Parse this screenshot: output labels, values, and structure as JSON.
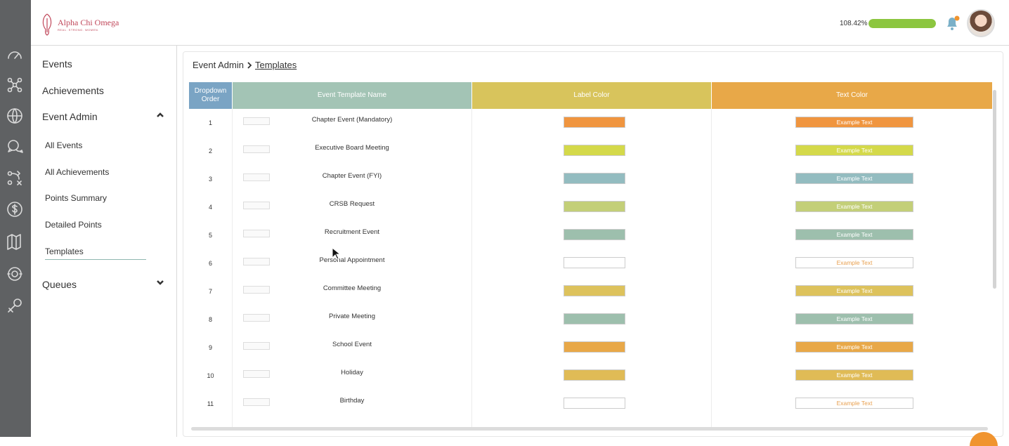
{
  "brand": {
    "name": "Alpha Chi Omega",
    "tagline": "REAL. STRONG. WOMEN."
  },
  "header": {
    "progress_text": "108.42%",
    "progress_percent": 100
  },
  "iconbar": [
    "speedometer-icon",
    "network-icon",
    "globe-icon",
    "chat-icon",
    "strategy-icon",
    "dollar-icon",
    "books-icon",
    "support-icon",
    "key-icon"
  ],
  "sidebar": {
    "events": "Events",
    "achievements": "Achievements",
    "event_admin": "Event Admin",
    "sub": [
      "All Events",
      "All Achievements",
      "Points Summary",
      "Detailed Points",
      "Templates"
    ],
    "queues": "Queues"
  },
  "breadcrumb": {
    "parent": "Event Admin",
    "current": "Templates"
  },
  "table": {
    "headers": {
      "order": "Dropdown Order",
      "name": "Event Template Name",
      "label": "Label Color",
      "text": "Text Color"
    },
    "header_colors": {
      "order": "#7aa4c4",
      "name": "#a3c4b5",
      "label": "#d8c45c",
      "text": "#e8a848"
    },
    "rows": [
      {
        "order": "1",
        "name": "Chapter Event (Mandatory)",
        "color": "#f0953f",
        "example": "Example Text",
        "text_color": "#ffffff"
      },
      {
        "order": "2",
        "name": "Executive Board Meeting",
        "color": "#d4d94a",
        "example": "Example Text",
        "text_color": "#ffffff"
      },
      {
        "order": "3",
        "name": "Chapter Event (FYI)",
        "color": "#93bcc0",
        "example": "Example Text",
        "text_color": "#ffffff"
      },
      {
        "order": "4",
        "name": "CRSB Request",
        "color": "#c3cf78",
        "example": "Example Text",
        "text_color": "#ffffff"
      },
      {
        "order": "5",
        "name": "Recruitment Event",
        "color": "#9dbfad",
        "example": "Example Text",
        "text_color": "#ffffff"
      },
      {
        "order": "6",
        "name": "Personal Appointment",
        "color": "#ffffff",
        "example": "Example Text",
        "text_color": "#e8a050"
      },
      {
        "order": "7",
        "name": "Committee Meeting",
        "color": "#ddc25c",
        "example": "Example Text",
        "text_color": "#ffffff"
      },
      {
        "order": "8",
        "name": "Private Meeting",
        "color": "#9dbfad",
        "example": "Example Text",
        "text_color": "#ffffff"
      },
      {
        "order": "9",
        "name": "School Event",
        "color": "#e8a848",
        "example": "Example Text",
        "text_color": "#ffffff"
      },
      {
        "order": "10",
        "name": "Holiday",
        "color": "#e0bb56",
        "example": "Example Text",
        "text_color": "#ffffff"
      },
      {
        "order": "11",
        "name": "Birthday",
        "color": "#ffffff",
        "example": "Example Text",
        "text_color": "#e8a050"
      }
    ]
  }
}
